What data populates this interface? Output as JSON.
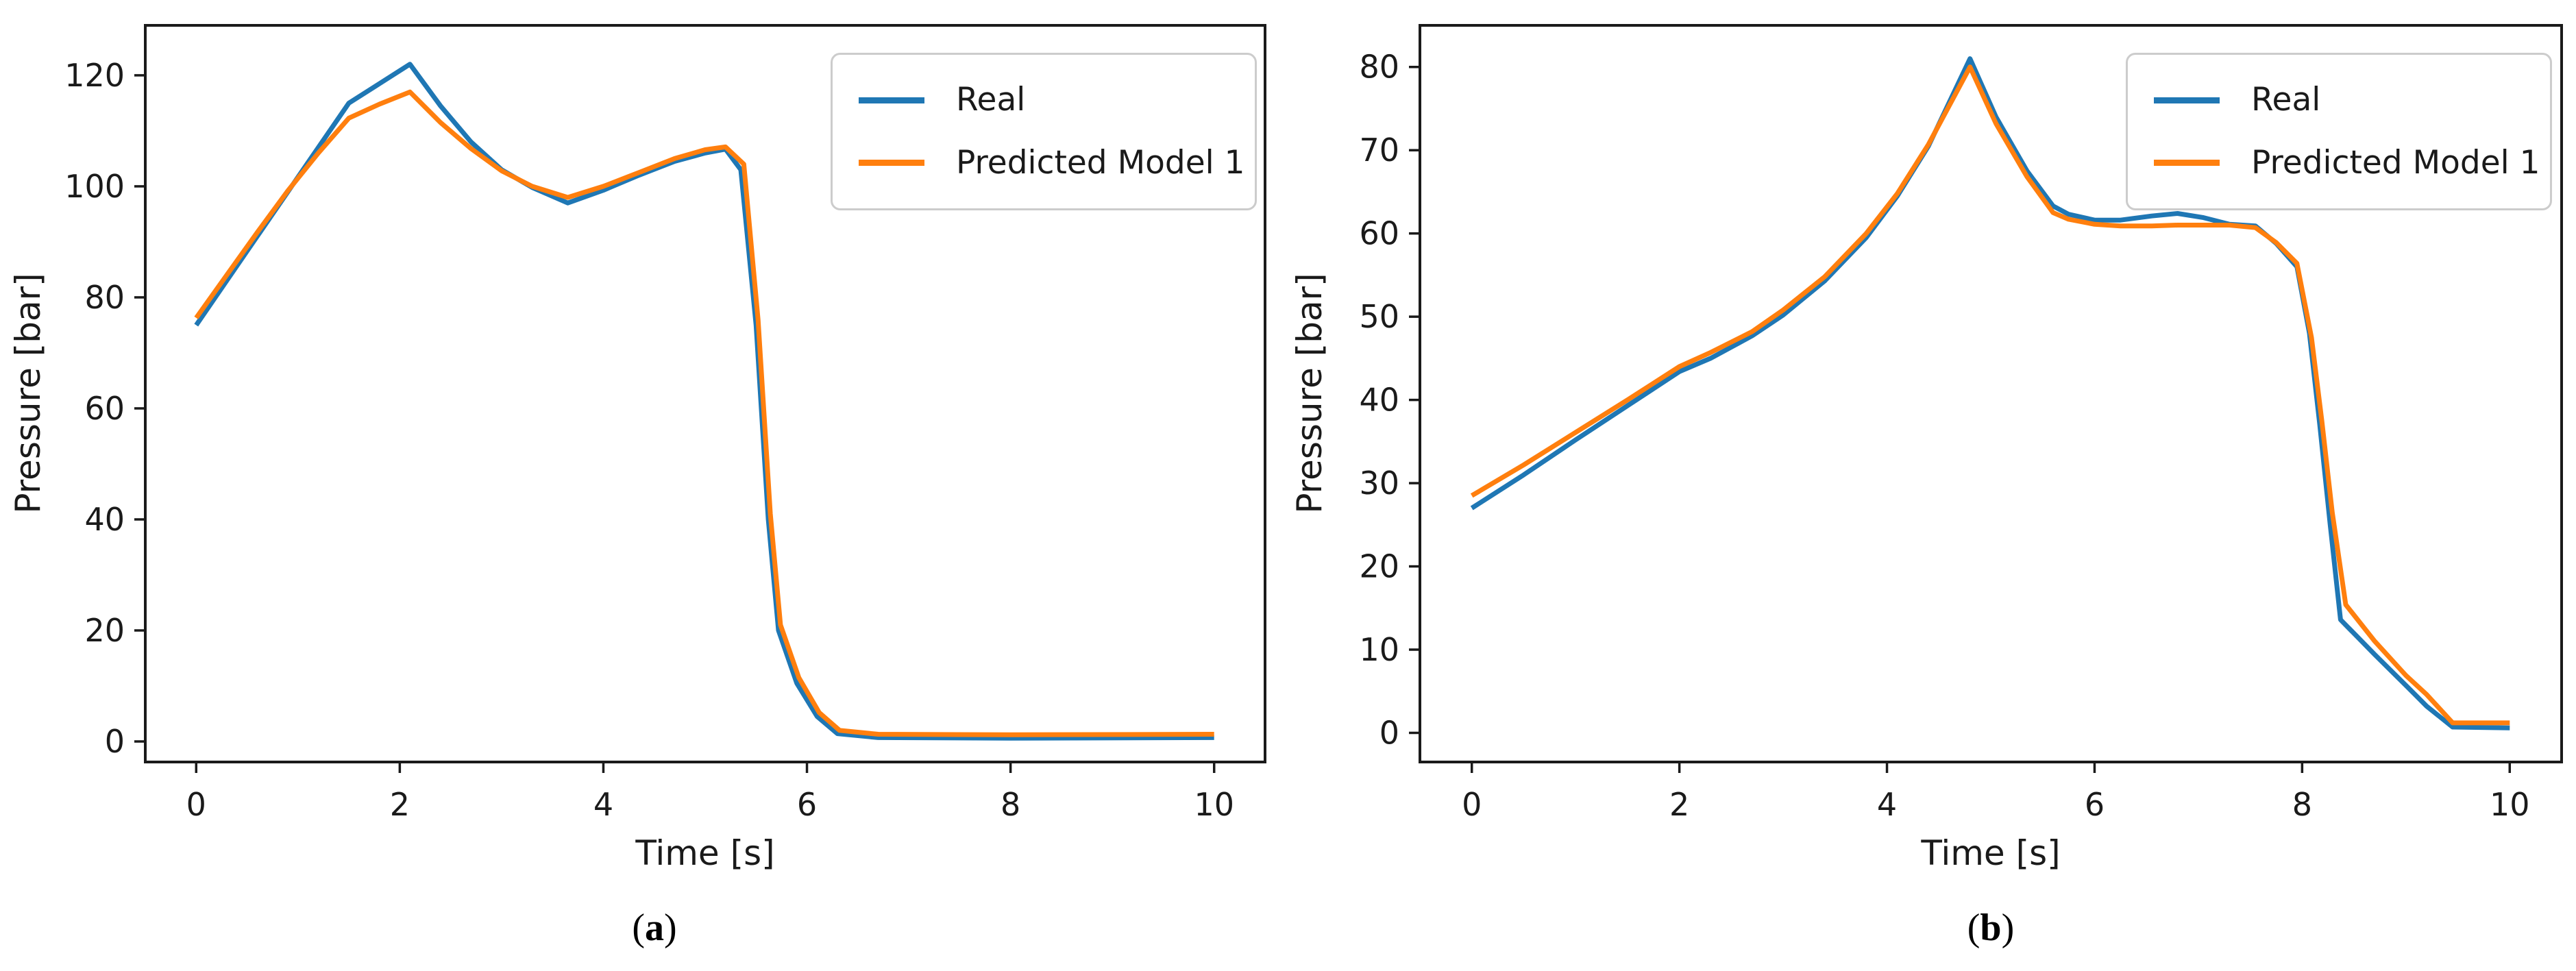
{
  "figure": {
    "background": "#ffffff",
    "spine_color": "#1a1a1a",
    "text_color": "#1a1a1a",
    "legend_border_color": "#cccccc"
  },
  "captions": [
    {
      "open": "(",
      "letter": "a",
      "close": ")"
    },
    {
      "open": "(",
      "letter": "b",
      "close": ")"
    }
  ],
  "chart_data": [
    {
      "type": "line",
      "title": "",
      "xlabel": "Time [s]",
      "ylabel": "Pressure [bar]",
      "xlim": [
        -0.5,
        10.5
      ],
      "ylim": [
        -3.7,
        129
      ],
      "xticks": [
        0,
        2,
        4,
        6,
        8,
        10
      ],
      "yticks": [
        0,
        20,
        40,
        60,
        80,
        100,
        120
      ],
      "grid": false,
      "legend_position": "upper right",
      "series": [
        {
          "name": "Real",
          "color": "#1f77b4",
          "points": [
            [
              0,
              75
            ],
            [
              0.3,
              83
            ],
            [
              0.6,
              91
            ],
            [
              0.9,
              99
            ],
            [
              1.2,
              107
            ],
            [
              1.5,
              115
            ],
            [
              1.8,
              118.5
            ],
            [
              2.1,
              122
            ],
            [
              2.4,
              114.5
            ],
            [
              2.7,
              108
            ],
            [
              3.0,
              103
            ],
            [
              3.3,
              99.8
            ],
            [
              3.65,
              97
            ],
            [
              4.0,
              99.3
            ],
            [
              4.35,
              102
            ],
            [
              4.7,
              104.5
            ],
            [
              5.0,
              106
            ],
            [
              5.2,
              106.7
            ],
            [
              5.35,
              103
            ],
            [
              5.5,
              75
            ],
            [
              5.62,
              40
            ],
            [
              5.72,
              20
            ],
            [
              5.9,
              10.5
            ],
            [
              6.1,
              4.5
            ],
            [
              6.3,
              1.4
            ],
            [
              6.7,
              0.7
            ],
            [
              8.0,
              0.6
            ],
            [
              10,
              0.7
            ]
          ]
        },
        {
          "name": "Predicted Model 1",
          "color": "#ff7f0e",
          "points": [
            [
              0,
              76.3
            ],
            [
              0.3,
              84
            ],
            [
              0.6,
              91.7
            ],
            [
              0.9,
              99.2
            ],
            [
              1.2,
              106
            ],
            [
              1.5,
              112.3
            ],
            [
              1.8,
              114.8
            ],
            [
              2.1,
              117
            ],
            [
              2.4,
              111.5
            ],
            [
              2.7,
              106.8
            ],
            [
              3.0,
              102.8
            ],
            [
              3.3,
              100
            ],
            [
              3.65,
              98
            ],
            [
              4.0,
              100
            ],
            [
              4.35,
              102.5
            ],
            [
              4.7,
              105
            ],
            [
              5.0,
              106.6
            ],
            [
              5.2,
              107.1
            ],
            [
              5.38,
              104
            ],
            [
              5.52,
              76
            ],
            [
              5.64,
              41
            ],
            [
              5.74,
              21
            ],
            [
              5.92,
              11.5
            ],
            [
              6.12,
              5.2
            ],
            [
              6.32,
              2
            ],
            [
              6.7,
              1.3
            ],
            [
              8.0,
              1.2
            ],
            [
              10,
              1.3
            ]
          ]
        }
      ]
    },
    {
      "type": "line",
      "title": "",
      "xlabel": "Time [s]",
      "ylabel": "Pressure [bar]",
      "xlim": [
        -0.5,
        10.5
      ],
      "ylim": [
        -3.5,
        85
      ],
      "xticks": [
        0,
        2,
        4,
        6,
        8,
        10
      ],
      "yticks": [
        0,
        10,
        20,
        30,
        40,
        50,
        60,
        70,
        80
      ],
      "grid": false,
      "legend_position": "upper right",
      "series": [
        {
          "name": "Real",
          "color": "#1f77b4",
          "points": [
            [
              0,
              27
            ],
            [
              0.5,
              31
            ],
            [
              1.0,
              35.2
            ],
            [
              1.5,
              39.3
            ],
            [
              2.0,
              43.4
            ],
            [
              2.3,
              45
            ],
            [
              2.7,
              47.7
            ],
            [
              3.0,
              50.2
            ],
            [
              3.4,
              54.3
            ],
            [
              3.8,
              59.5
            ],
            [
              4.1,
              64.5
            ],
            [
              4.4,
              70.5
            ],
            [
              4.8,
              81
            ],
            [
              5.05,
              74
            ],
            [
              5.35,
              67.5
            ],
            [
              5.6,
              63.3
            ],
            [
              5.75,
              62.3
            ],
            [
              6.0,
              61.6
            ],
            [
              6.25,
              61.6
            ],
            [
              6.55,
              62.1
            ],
            [
              6.8,
              62.4
            ],
            [
              7.05,
              61.9
            ],
            [
              7.3,
              61.1
            ],
            [
              7.55,
              60.9
            ],
            [
              7.75,
              58.8
            ],
            [
              7.95,
              56
            ],
            [
              8.07,
              48
            ],
            [
              8.17,
              37
            ],
            [
              8.27,
              25
            ],
            [
              8.37,
              13.6
            ],
            [
              8.7,
              9.4
            ],
            [
              9.0,
              5.7
            ],
            [
              9.2,
              3.2
            ],
            [
              9.45,
              0.7
            ],
            [
              10,
              0.6
            ]
          ]
        },
        {
          "name": "Predicted Model 1",
          "color": "#ff7f0e",
          "points": [
            [
              0,
              28.5
            ],
            [
              0.5,
              32.2
            ],
            [
              1.0,
              36.1
            ],
            [
              1.5,
              40
            ],
            [
              2.0,
              44
            ],
            [
              2.3,
              45.7
            ],
            [
              2.7,
              48.2
            ],
            [
              3.0,
              50.8
            ],
            [
              3.4,
              54.8
            ],
            [
              3.8,
              60
            ],
            [
              4.1,
              64.8
            ],
            [
              4.4,
              70.7
            ],
            [
              4.8,
              80
            ],
            [
              5.05,
              73.2
            ],
            [
              5.35,
              66.8
            ],
            [
              5.6,
              62.5
            ],
            [
              5.75,
              61.7
            ],
            [
              6.0,
              61.1
            ],
            [
              6.25,
              60.9
            ],
            [
              6.55,
              60.9
            ],
            [
              6.8,
              61
            ],
            [
              7.05,
              61
            ],
            [
              7.3,
              61
            ],
            [
              7.55,
              60.7
            ],
            [
              7.75,
              58.9
            ],
            [
              7.95,
              56.4
            ],
            [
              8.09,
              47.5
            ],
            [
              8.19,
              37.5
            ],
            [
              8.29,
              26.5
            ],
            [
              8.42,
              15.4
            ],
            [
              8.7,
              11
            ],
            [
              9.0,
              6.9
            ],
            [
              9.2,
              4.6
            ],
            [
              9.45,
              1.2
            ],
            [
              10,
              1.2
            ]
          ]
        }
      ]
    }
  ]
}
